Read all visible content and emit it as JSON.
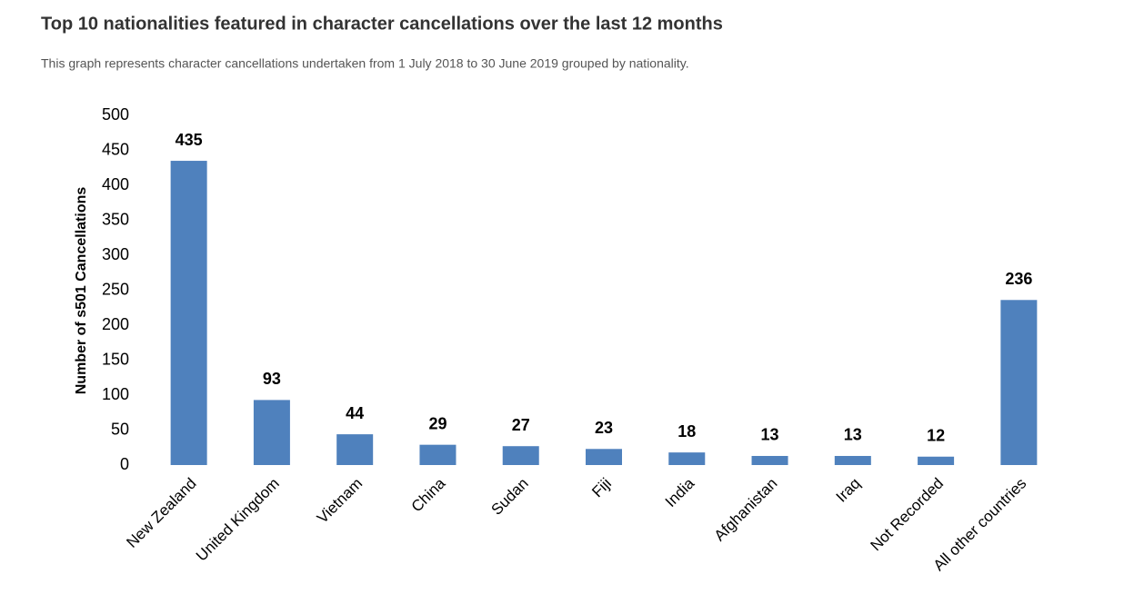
{
  "chart_data": {
    "type": "bar",
    "title": "Top 10 nationalities featured in character cancellations over the last 12 months",
    "subtitle": "This graph represents character cancellations undertaken from 1 July 2018 to 30 June 2019 grouped by nationality.",
    "y_label": "Number of s501 Cancellations",
    "categories": [
      "New Zealand",
      "United Kingdom",
      "Vietnam",
      "China",
      "Sudan",
      "Fiji",
      "India",
      "Afghanistan",
      "Iraq",
      "Not Recorded",
      "All other countries"
    ],
    "values": [
      435,
      93,
      44,
      29,
      27,
      23,
      18,
      13,
      13,
      12,
      236
    ],
    "color": "#4f81bd",
    "ylim": [
      0,
      500
    ],
    "yticks": [
      0,
      50,
      100,
      150,
      200,
      250,
      300,
      350,
      400,
      450,
      500
    ],
    "grid": false
  }
}
